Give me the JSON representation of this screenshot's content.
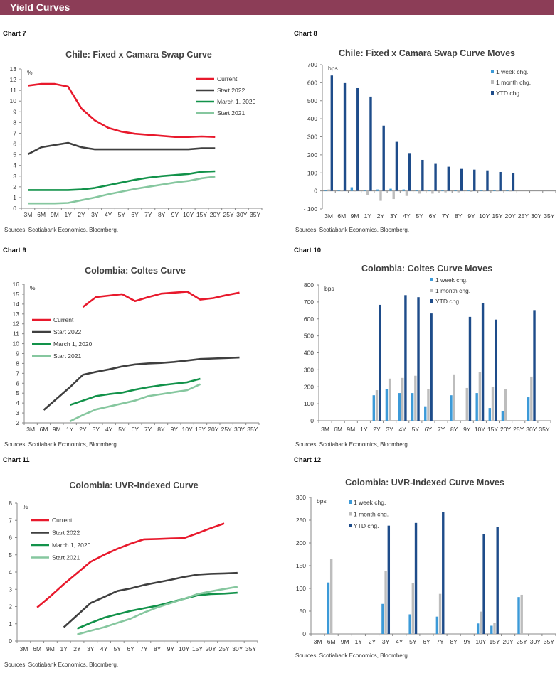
{
  "header": {
    "title": "Yield Curves"
  },
  "colors": {
    "current": "#e8192c",
    "start2022": "#3f3f3f",
    "march2020": "#12924a",
    "start2021": "#86c79f",
    "week": "#3c9ad8",
    "month": "#bdbdbd",
    "ytd": "#1e4c8a",
    "header": "#8c3d57"
  },
  "chart_data": [
    {
      "label": "Chart 7",
      "type": "line",
      "title": "Chile: Fixed x Camara Swap Curve",
      "unit": "%",
      "ylim": [
        0,
        13
      ],
      "ystep": 1,
      "source": "Sources: Scotiabank Economics, Bloomberg.",
      "legend": "top-right",
      "categories": [
        "3M",
        "6M",
        "9M",
        "1Y",
        "2Y",
        "3Y",
        "4Y",
        "5Y",
        "6Y",
        "7Y",
        "8Y",
        "9Y",
        "10Y",
        "15Y",
        "20Y",
        "25Y",
        "30Y",
        "35Y"
      ],
      "series": [
        {
          "name": "Current",
          "color": "current",
          "values": [
            11.45,
            11.6,
            11.6,
            11.35,
            9.3,
            8.2,
            7.5,
            7.15,
            6.95,
            6.85,
            6.75,
            6.65,
            6.65,
            6.7,
            6.65,
            null,
            null,
            null
          ]
        },
        {
          "name": "Start 2022",
          "color": "start2022",
          "values": [
            5.05,
            5.7,
            5.9,
            6.1,
            5.7,
            5.5,
            5.5,
            5.5,
            5.5,
            5.5,
            5.5,
            5.5,
            5.5,
            5.6,
            5.6,
            null,
            null,
            null
          ]
        },
        {
          "name": "March 1, 2020",
          "color": "march2020",
          "values": [
            1.7,
            1.7,
            1.7,
            1.7,
            1.75,
            1.9,
            2.15,
            2.4,
            2.65,
            2.85,
            3.0,
            3.1,
            3.2,
            3.4,
            3.45,
            null,
            null,
            null
          ]
        },
        {
          "name": "Start 2021",
          "color": "start2021",
          "values": [
            0.45,
            0.45,
            0.45,
            0.5,
            0.75,
            1.0,
            1.3,
            1.55,
            1.8,
            2.0,
            2.2,
            2.4,
            2.55,
            2.8,
            2.95,
            null,
            null,
            null
          ]
        }
      ]
    },
    {
      "label": "Chart 8",
      "type": "bar",
      "title": "Chile: Fixed x Camara Swap Curve Moves",
      "unit": "bps",
      "ylim": [
        -100,
        700
      ],
      "ystep": 100,
      "source": "Sources: Scotiabank Economics, Bloomberg.",
      "legend": "top-right",
      "categories": [
        "3M",
        "6M",
        "9M",
        "1Y",
        "2Y",
        "3Y",
        "4Y",
        "5Y",
        "6Y",
        "7Y",
        "8Y",
        "9Y",
        "10Y",
        "15Y",
        "20Y",
        "25Y",
        "30Y",
        "35Y"
      ],
      "series": [
        {
          "name": "1 week chg.",
          "color": "week",
          "values": [
            5,
            5,
            20,
            5,
            8,
            12,
            8,
            5,
            5,
            5,
            5,
            3,
            3,
            3,
            3,
            null,
            null,
            null
          ]
        },
        {
          "name": "1 month chg.",
          "color": "month",
          "values": [
            8,
            0,
            -3,
            -22,
            -55,
            -45,
            -28,
            -15,
            -15,
            -8,
            -8,
            -5,
            -3,
            -3,
            -3,
            null,
            null,
            null
          ]
        },
        {
          "name": "YTD chg.",
          "color": "ytd",
          "values": [
            640,
            598,
            570,
            523,
            362,
            272,
            210,
            172,
            150,
            134,
            122,
            118,
            114,
            105,
            101,
            null,
            null,
            null
          ]
        }
      ]
    },
    {
      "label": "Chart 9",
      "type": "line",
      "title": "Colombia: Coltes Curve",
      "unit": "%",
      "ylim": [
        2,
        16
      ],
      "ystep": 1,
      "source": "Sources: Scotiabank Economics, Bloomberg.",
      "legend": "left",
      "categories": [
        "3M",
        "6M",
        "9M",
        "1Y",
        "2Y",
        "3Y",
        "4Y",
        "5Y",
        "6Y",
        "7Y",
        "8Y",
        "9Y",
        "10Y",
        "15Y",
        "20Y",
        "25Y",
        "30Y",
        "35Y"
      ],
      "series": [
        {
          "name": "Current",
          "color": "current",
          "values": [
            null,
            null,
            null,
            null,
            13.7,
            14.7,
            14.85,
            15.0,
            14.3,
            14.7,
            15.05,
            15.15,
            15.25,
            14.45,
            14.6,
            14.9,
            15.15,
            null
          ]
        },
        {
          "name": "Start 2022",
          "color": "start2022",
          "values": [
            null,
            3.3,
            null,
            5.6,
            6.85,
            7.15,
            7.4,
            7.7,
            7.9,
            8.0,
            8.05,
            8.15,
            8.3,
            8.45,
            8.5,
            8.55,
            8.6,
            null
          ]
        },
        {
          "name": "March 1, 2020",
          "color": "march2020",
          "values": [
            null,
            null,
            null,
            3.8,
            4.25,
            4.7,
            4.9,
            5.05,
            5.35,
            5.6,
            5.8,
            5.95,
            6.1,
            6.45,
            null,
            null,
            null,
            null
          ]
        },
        {
          "name": "Start 2021",
          "color": "start2021",
          "values": [
            null,
            null,
            null,
            2.15,
            2.8,
            3.35,
            3.65,
            3.95,
            4.25,
            4.7,
            4.9,
            5.1,
            5.3,
            5.9,
            null,
            null,
            null,
            null
          ]
        }
      ]
    },
    {
      "label": "Chart 10",
      "type": "bar",
      "title": "Colombia: Coltes Curve Moves",
      "unit": "bps",
      "ylim": [
        0,
        800
      ],
      "ystep": 100,
      "source": "Sources: Scotiabank Economics, Bloomberg.",
      "legend": "top-center",
      "categories": [
        "3M",
        "6M",
        "9M",
        "1Y",
        "2Y",
        "3Y",
        "4Y",
        "5Y",
        "6Y",
        "7Y",
        "8Y",
        "9Y",
        "10Y",
        "15Y",
        "20Y",
        "25Y",
        "30Y",
        "35Y"
      ],
      "series": [
        {
          "name": "1 week chg.",
          "color": "week",
          "values": [
            null,
            null,
            null,
            null,
            150,
            185,
            163,
            163,
            85,
            null,
            150,
            null,
            163,
            75,
            58,
            null,
            138,
            null
          ]
        },
        {
          "name": "1 month chg.",
          "color": "month",
          "values": [
            null,
            null,
            null,
            null,
            180,
            248,
            252,
            265,
            185,
            null,
            273,
            193,
            285,
            200,
            185,
            null,
            260,
            null
          ]
        },
        {
          "name": "YTD chg.",
          "color": "ytd",
          "values": [
            null,
            null,
            null,
            null,
            683,
            null,
            740,
            728,
            632,
            null,
            null,
            612,
            692,
            596,
            null,
            null,
            652,
            null
          ]
        }
      ]
    },
    {
      "label": "Chart 11",
      "type": "line",
      "title": "Colombia: UVR-Indexed Curve",
      "unit": "%",
      "ylim": [
        0,
        8
      ],
      "ystep": 1,
      "source": "Sources: Scotiabank Economics, Bloomberg.",
      "legend": "left",
      "categories": [
        "3M",
        "6M",
        "9M",
        "1Y",
        "2Y",
        "3Y",
        "4Y",
        "5Y",
        "6Y",
        "7Y",
        "8Y",
        "9Y",
        "10Y",
        "15Y",
        "20Y",
        "25Y",
        "30Y",
        "35Y"
      ],
      "series": [
        {
          "name": "Current",
          "color": "current",
          "values": [
            null,
            1.95,
            2.6,
            3.3,
            3.95,
            4.6,
            5.0,
            5.35,
            5.65,
            5.9,
            5.92,
            5.95,
            5.97,
            6.25,
            6.55,
            6.82,
            null,
            null
          ]
        },
        {
          "name": "Start 2022",
          "color": "start2022",
          "values": [
            null,
            null,
            null,
            0.8,
            1.5,
            2.2,
            2.55,
            2.9,
            3.05,
            3.25,
            3.4,
            3.55,
            3.72,
            3.85,
            3.9,
            3.92,
            3.95,
            null
          ]
        },
        {
          "name": "March 1, 2020",
          "color": "march2020",
          "values": [
            null,
            null,
            null,
            null,
            0.72,
            1.05,
            1.35,
            1.55,
            1.75,
            1.9,
            2.05,
            2.25,
            2.45,
            2.65,
            2.72,
            2.75,
            2.8,
            null
          ]
        },
        {
          "name": "Start 2021",
          "color": "start2021",
          "values": [
            null,
            null,
            null,
            null,
            0.38,
            0.6,
            0.8,
            1.05,
            1.3,
            1.65,
            1.95,
            2.2,
            2.45,
            2.72,
            2.88,
            3.02,
            3.15,
            null
          ]
        }
      ]
    },
    {
      "label": "Chart 12",
      "type": "bar",
      "title": "Colombia: UVR-Indexed Curve Moves",
      "unit": "bps",
      "ylim": [
        0,
        300
      ],
      "ystep": 50,
      "source": "Sources: Scotiabank Economics, Bloomberg.",
      "legend": "top-left",
      "categories": [
        "3M",
        "6M",
        "9M",
        "1Y",
        "2Y",
        "3Y",
        "4Y",
        "5Y",
        "6Y",
        "7Y",
        "8Y",
        "9Y",
        "10Y",
        "15Y",
        "20Y",
        "25Y",
        "30Y",
        "35Y"
      ],
      "series": [
        {
          "name": "1 week chg.",
          "color": "week",
          "values": [
            null,
            113,
            null,
            null,
            null,
            66,
            null,
            43,
            null,
            38,
            null,
            null,
            23,
            18,
            null,
            81,
            null,
            null
          ]
        },
        {
          "name": "1 month chg.",
          "color": "month",
          "values": [
            null,
            165,
            null,
            null,
            null,
            139,
            null,
            111,
            null,
            88,
            null,
            null,
            49,
            24,
            null,
            86,
            null,
            null
          ]
        },
        {
          "name": "YTD chg.",
          "color": "ytd",
          "values": [
            null,
            null,
            null,
            null,
            null,
            238,
            null,
            244,
            null,
            268,
            null,
            null,
            220,
            235,
            null,
            null,
            null,
            null
          ]
        }
      ]
    }
  ]
}
